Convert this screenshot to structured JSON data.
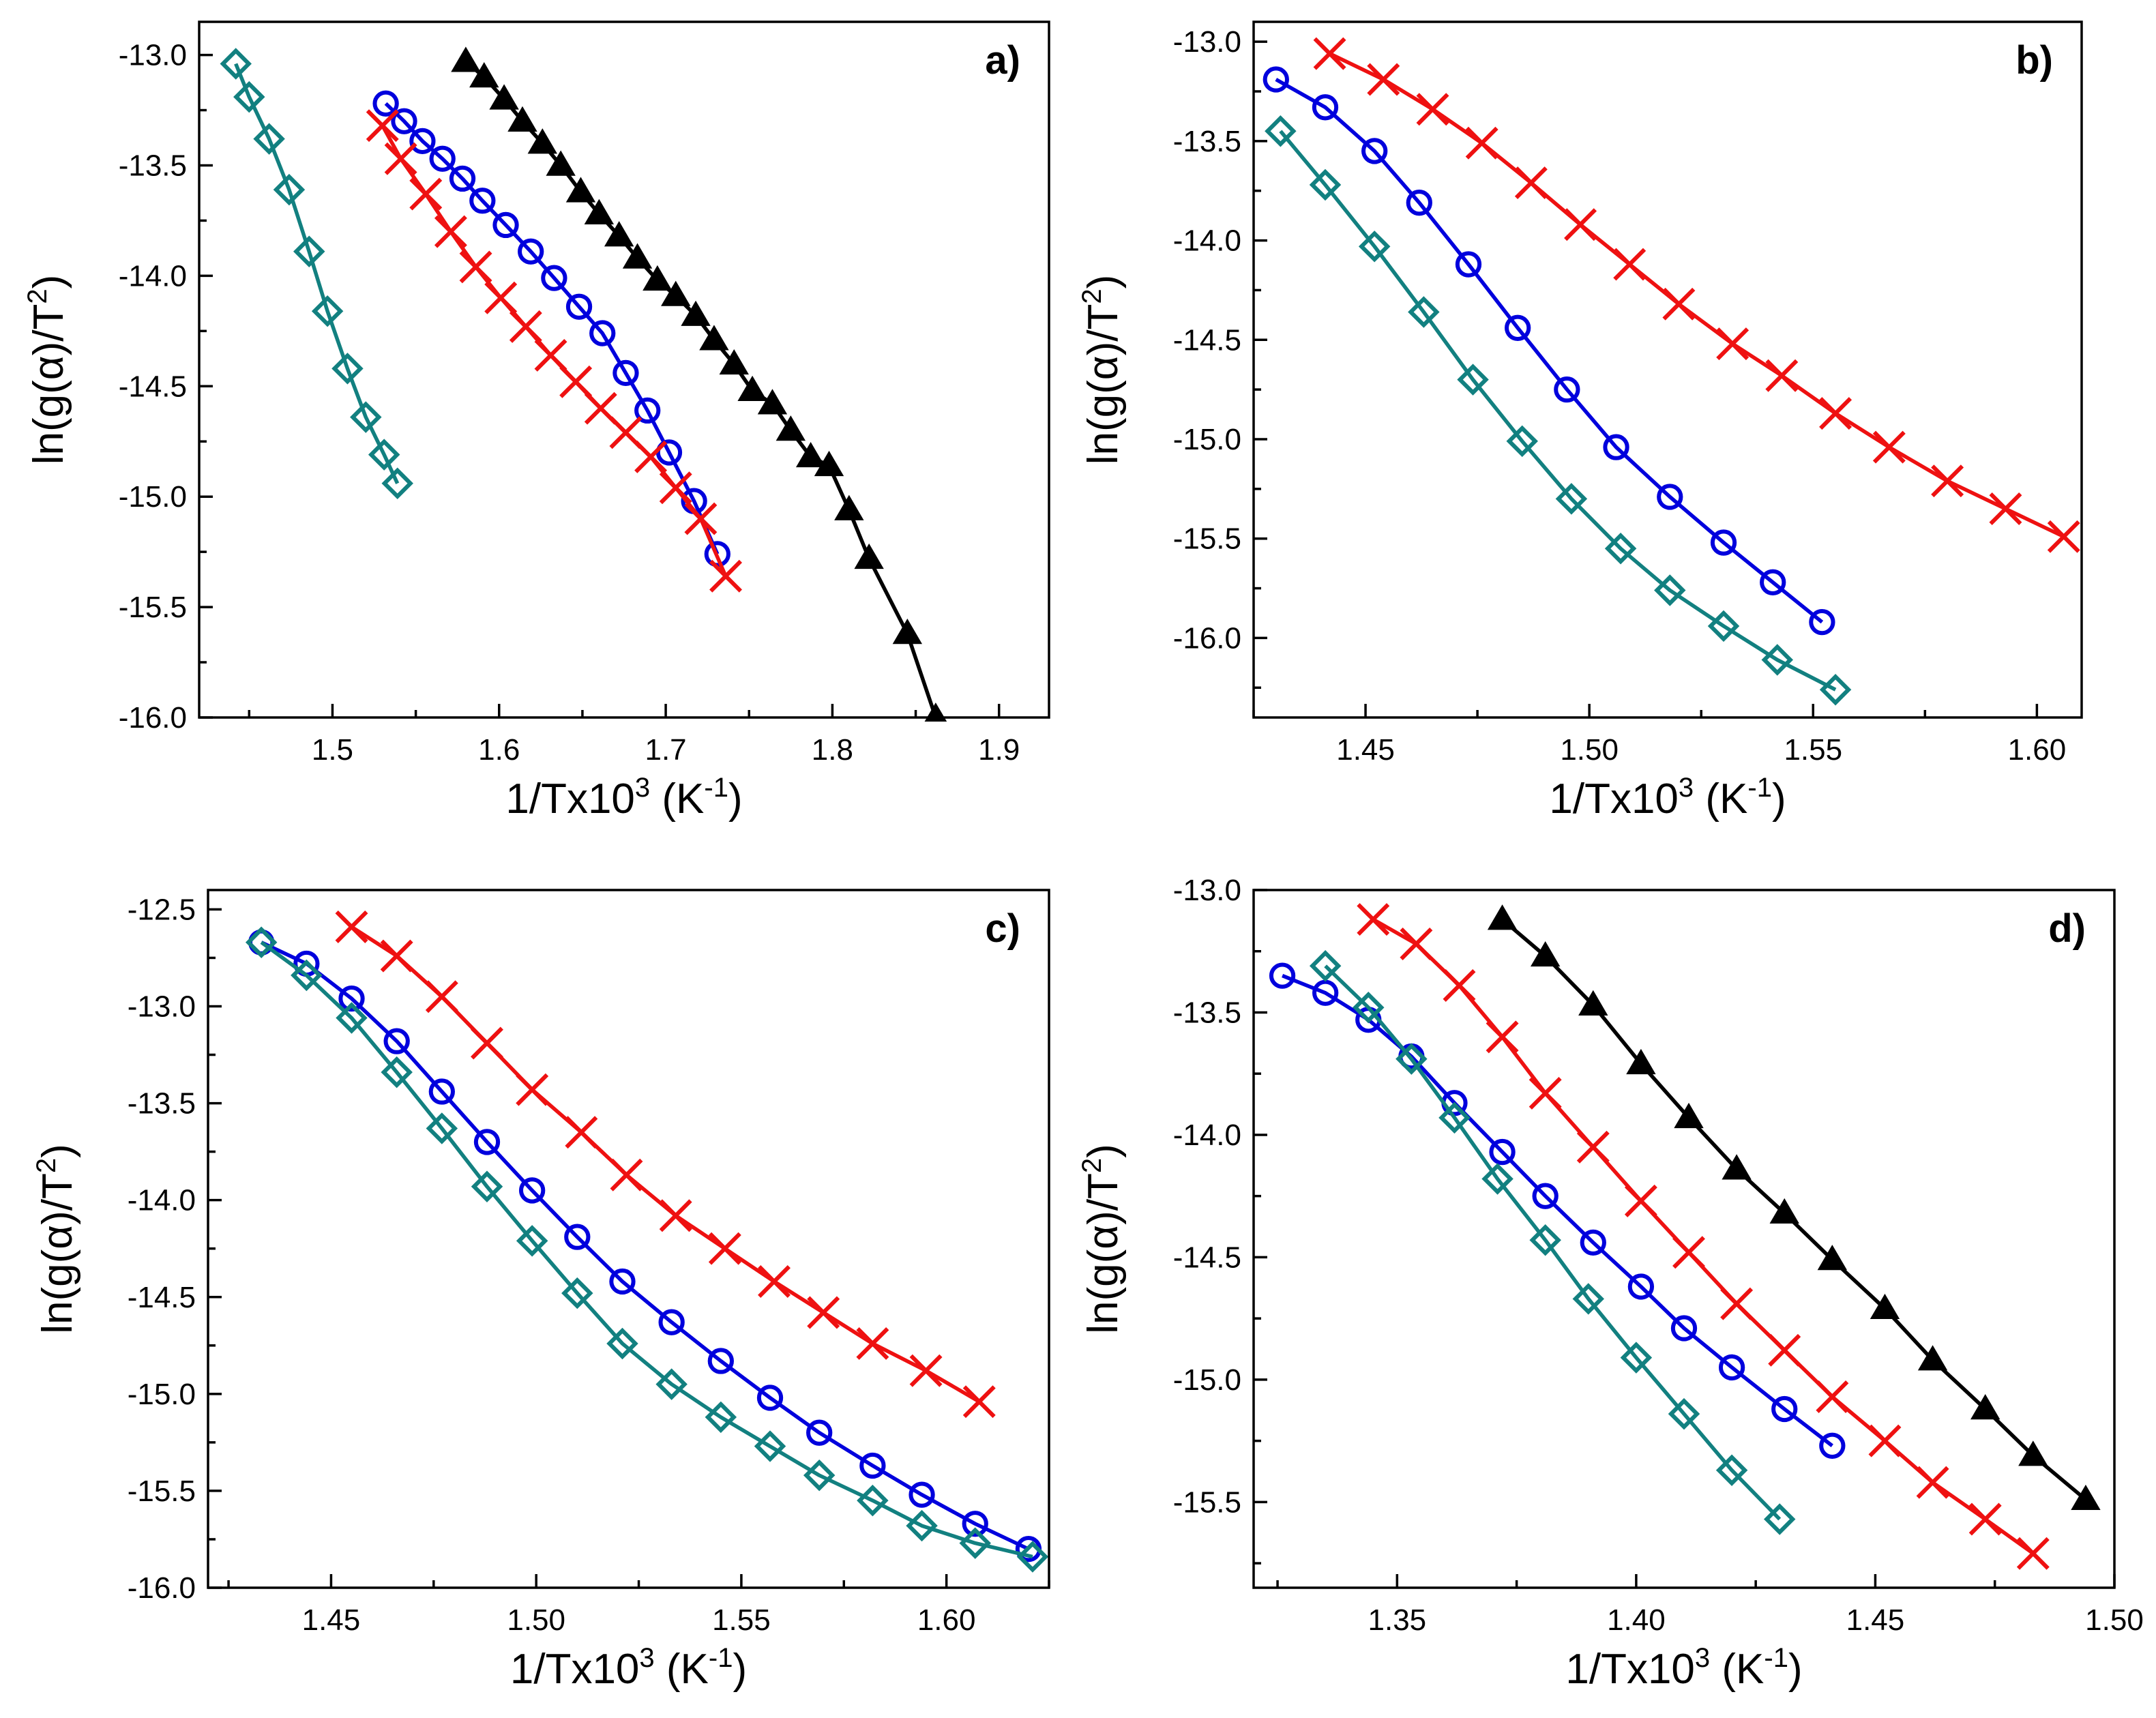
{
  "chart_data": [
    {
      "panel": "a)",
      "type": "line",
      "xlabel": "1/Tx10",
      "xlabel_sup": "3",
      "xlabel_unit": "(K",
      "xlabel_unit_sup": "-1",
      "xlabel_close": ")",
      "ylabel": "ln(g(α)/T",
      "ylabel_sup": "2",
      "ylabel_close": ")",
      "xlim": [
        1.42,
        1.93
      ],
      "ylim": [
        -16.0,
        -12.85
      ],
      "xticks": [
        1.5,
        1.6,
        1.7,
        1.8,
        1.9
      ],
      "xtick_labels": [
        "1.5",
        "1.6",
        "1.7",
        "1.8",
        "1.9"
      ],
      "yticks": [
        -16.0,
        -15.5,
        -15.0,
        -14.5,
        -14.0,
        -13.5,
        -13.0
      ],
      "ytick_labels": [
        "-16.0",
        "-15.5",
        "-15.0",
        "-14.5",
        "-14.0",
        "-13.5",
        "-13.0"
      ],
      "series": [
        {
          "name": "triangle",
          "color": "#000000",
          "marker": "triangle",
          "x": [
            1.58,
            1.591,
            1.603,
            1.614,
            1.626,
            1.637,
            1.649,
            1.66,
            1.672,
            1.683,
            1.695,
            1.706,
            1.718,
            1.729,
            1.741,
            1.752,
            1.764,
            1.775,
            1.787,
            1.798,
            1.81,
            1.822,
            1.845,
            1.862
          ],
          "y": [
            -13.03,
            -13.1,
            -13.2,
            -13.3,
            -13.4,
            -13.5,
            -13.62,
            -13.72,
            -13.82,
            -13.92,
            -14.02,
            -14.09,
            -14.18,
            -14.29,
            -14.4,
            -14.52,
            -14.58,
            -14.7,
            -14.82,
            -14.86,
            -15.06,
            -15.28,
            -15.62,
            -16.0
          ]
        },
        {
          "name": "circle",
          "color": "#0000dd",
          "marker": "circle",
          "x": [
            1.532,
            1.543,
            1.554,
            1.566,
            1.578,
            1.59,
            1.604,
            1.619,
            1.633,
            1.648,
            1.662,
            1.676,
            1.689,
            1.702,
            1.717,
            1.731
          ],
          "y": [
            -13.22,
            -13.3,
            -13.39,
            -13.47,
            -13.56,
            -13.66,
            -13.77,
            -13.89,
            -14.01,
            -14.14,
            -14.26,
            -14.44,
            -14.61,
            -14.8,
            -15.02,
            -15.26
          ]
        },
        {
          "name": "cross",
          "color": "#ee1111",
          "marker": "cross",
          "x": [
            1.53,
            1.541,
            1.556,
            1.571,
            1.586,
            1.601,
            1.616,
            1.631,
            1.646,
            1.661,
            1.676,
            1.691,
            1.706,
            1.721,
            1.736
          ],
          "y": [
            -13.32,
            -13.47,
            -13.63,
            -13.8,
            -13.96,
            -14.1,
            -14.23,
            -14.36,
            -14.48,
            -14.6,
            -14.71,
            -14.82,
            -14.96,
            -15.1,
            -15.36
          ]
        },
        {
          "name": "diamond",
          "color": "#128080",
          "marker": "diamond",
          "x": [
            1.442,
            1.45,
            1.462,
            1.474,
            1.486,
            1.497,
            1.509,
            1.52,
            1.531,
            1.539
          ],
          "y": [
            -13.04,
            -13.19,
            -13.38,
            -13.61,
            -13.89,
            -14.16,
            -14.42,
            -14.64,
            -14.81,
            -14.94
          ]
        }
      ]
    },
    {
      "panel": "b)",
      "type": "line",
      "xlabel": "1/Tx10",
      "xlabel_sup": "3",
      "xlabel_unit": "(K",
      "xlabel_unit_sup": "-1",
      "xlabel_close": ")",
      "ylabel": "ln(g(α)/T",
      "ylabel_sup": "2",
      "ylabel_close": ")",
      "xlim": [
        1.425,
        1.61
      ],
      "ylim": [
        -16.4,
        -12.9
      ],
      "xticks": [
        1.45,
        1.5,
        1.55,
        1.6
      ],
      "xtick_labels": [
        "1.45",
        "1.50",
        "1.55",
        "1.60"
      ],
      "yticks": [
        -16.0,
        -15.5,
        -15.0,
        -14.5,
        -14.0,
        -13.5,
        -13.0
      ],
      "ytick_labels": [
        "-16.0",
        "-15.5",
        "-15.0",
        "-14.5",
        "-14.0",
        "-13.5",
        "-13.0"
      ],
      "series": [
        {
          "name": "cross",
          "color": "#ee1111",
          "marker": "cross",
          "x": [
            1.442,
            1.454,
            1.465,
            1.476,
            1.487,
            1.498,
            1.509,
            1.52,
            1.532,
            1.543,
            1.555,
            1.567,
            1.58,
            1.593,
            1.606
          ],
          "y": [
            -13.06,
            -13.19,
            -13.34,
            -13.51,
            -13.71,
            -13.92,
            -14.12,
            -14.32,
            -14.52,
            -14.68,
            -14.87,
            -15.04,
            -15.21,
            -15.35,
            -15.49
          ]
        },
        {
          "name": "circle",
          "color": "#0000dd",
          "marker": "circle",
          "x": [
            1.43,
            1.441,
            1.452,
            1.462,
            1.473,
            1.484,
            1.495,
            1.506,
            1.518,
            1.53,
            1.541,
            1.552
          ],
          "y": [
            -13.19,
            -13.33,
            -13.55,
            -13.81,
            -14.12,
            -14.44,
            -14.75,
            -15.04,
            -15.29,
            -15.52,
            -15.72,
            -15.92
          ]
        },
        {
          "name": "diamond",
          "color": "#128080",
          "marker": "diamond",
          "x": [
            1.431,
            1.441,
            1.452,
            1.463,
            1.474,
            1.485,
            1.496,
            1.507,
            1.518,
            1.53,
            1.542,
            1.555
          ],
          "y": [
            -13.45,
            -13.72,
            -14.03,
            -14.36,
            -14.7,
            -15.01,
            -15.3,
            -15.55,
            -15.76,
            -15.94,
            -16.11,
            -16.26
          ]
        }
      ]
    },
    {
      "panel": "c)",
      "type": "line",
      "xlabel": "1/Tx10",
      "xlabel_sup": "3",
      "xlabel_unit": "(K",
      "xlabel_unit_sup": "-1",
      "xlabel_close": ")",
      "ylabel": "ln(g(α)/T",
      "ylabel_sup": "2",
      "ylabel_close": ")",
      "xlim": [
        1.42,
        1.625
      ],
      "ylim": [
        -16.0,
        -12.4
      ],
      "xticks": [
        1.45,
        1.5,
        1.55,
        1.6
      ],
      "xtick_labels": [
        "1.45",
        "1.50",
        "1.55",
        "1.60"
      ],
      "yticks": [
        -16.0,
        -15.5,
        -15.0,
        -14.5,
        -14.0,
        -13.5,
        -13.0,
        -12.5
      ],
      "ytick_labels": [
        "-16.0",
        "-15.5",
        "-15.0",
        "-14.5",
        "-14.0",
        "-13.5",
        "-13.0",
        "-12.5"
      ],
      "series": [
        {
          "name": "cross",
          "color": "#ee1111",
          "marker": "cross",
          "x": [
            1.455,
            1.466,
            1.477,
            1.488,
            1.499,
            1.511,
            1.522,
            1.534,
            1.546,
            1.558,
            1.57,
            1.582,
            1.595,
            1.608
          ],
          "y": [
            -12.59,
            -12.74,
            -12.95,
            -13.19,
            -13.43,
            -13.65,
            -13.87,
            -14.08,
            -14.25,
            -14.42,
            -14.58,
            -14.74,
            -14.88,
            -15.04
          ]
        },
        {
          "name": "circle",
          "color": "#0000dd",
          "marker": "circle",
          "x": [
            1.433,
            1.444,
            1.455,
            1.466,
            1.477,
            1.488,
            1.499,
            1.51,
            1.521,
            1.533,
            1.545,
            1.557,
            1.569,
            1.582,
            1.594,
            1.607,
            1.62
          ],
          "y": [
            -12.67,
            -12.78,
            -12.96,
            -13.18,
            -13.44,
            -13.7,
            -13.95,
            -14.19,
            -14.42,
            -14.63,
            -14.83,
            -15.02,
            -15.2,
            -15.37,
            -15.52,
            -15.67,
            -15.8
          ]
        },
        {
          "name": "diamond",
          "color": "#128080",
          "marker": "diamond",
          "x": [
            1.433,
            1.444,
            1.455,
            1.466,
            1.477,
            1.488,
            1.499,
            1.51,
            1.521,
            1.533,
            1.545,
            1.557,
            1.569,
            1.582,
            1.594,
            1.607,
            1.621
          ],
          "y": [
            -12.67,
            -12.84,
            -13.06,
            -13.34,
            -13.63,
            -13.93,
            -14.21,
            -14.48,
            -14.74,
            -14.95,
            -15.12,
            -15.27,
            -15.42,
            -15.55,
            -15.68,
            -15.77,
            -15.84
          ]
        }
      ]
    },
    {
      "panel": "d)",
      "type": "line",
      "xlabel": "1/Tx10",
      "xlabel_sup": "3",
      "xlabel_unit": "(K",
      "xlabel_unit_sup": "-1",
      "xlabel_close": ")",
      "ylabel": "ln(g(α)/T",
      "ylabel_sup": "2",
      "ylabel_close": ")",
      "xlim": [
        1.32,
        1.5
      ],
      "ylim": [
        -15.85,
        -13.0
      ],
      "xticks": [
        1.35,
        1.4,
        1.45,
        1.5
      ],
      "xtick_labels": [
        "1.35",
        "1.40",
        "1.45",
        "1.50"
      ],
      "yticks": [
        -15.5,
        -15.0,
        -14.5,
        -14.0,
        -13.5,
        -13.0
      ],
      "ytick_labels": [
        "-15.5",
        "-15.0",
        "-14.5",
        "-14.0",
        "-13.5",
        "-13.0"
      ],
      "series": [
        {
          "name": "triangle",
          "color": "#000000",
          "marker": "triangle",
          "x": [
            1.372,
            1.381,
            1.391,
            1.401,
            1.411,
            1.421,
            1.431,
            1.441,
            1.452,
            1.462,
            1.473,
            1.483,
            1.494
          ],
          "y": [
            -13.12,
            -13.27,
            -13.47,
            -13.71,
            -13.93,
            -14.14,
            -14.32,
            -14.51,
            -14.71,
            -14.92,
            -15.12,
            -15.31,
            -15.49
          ]
        },
        {
          "name": "cross",
          "color": "#ee1111",
          "marker": "cross",
          "x": [
            1.345,
            1.354,
            1.363,
            1.372,
            1.381,
            1.391,
            1.401,
            1.411,
            1.421,
            1.431,
            1.441,
            1.452,
            1.462,
            1.473,
            1.483
          ],
          "y": [
            -13.12,
            -13.22,
            -13.39,
            -13.6,
            -13.83,
            -14.05,
            -14.27,
            -14.48,
            -14.69,
            -14.88,
            -15.07,
            -15.25,
            -15.42,
            -15.57,
            -15.71
          ]
        },
        {
          "name": "circle",
          "color": "#0000dd",
          "marker": "circle",
          "x": [
            1.326,
            1.335,
            1.344,
            1.353,
            1.362,
            1.372,
            1.381,
            1.391,
            1.401,
            1.41,
            1.42,
            1.431,
            1.441
          ],
          "y": [
            -13.35,
            -13.42,
            -13.53,
            -13.68,
            -13.87,
            -14.07,
            -14.25,
            -14.44,
            -14.62,
            -14.79,
            -14.95,
            -15.12,
            -15.27
          ]
        },
        {
          "name": "diamond",
          "color": "#128080",
          "marker": "diamond",
          "x": [
            1.335,
            1.344,
            1.353,
            1.362,
            1.371,
            1.381,
            1.39,
            1.4,
            1.41,
            1.42,
            1.43
          ],
          "y": [
            -13.31,
            -13.48,
            -13.69,
            -13.93,
            -14.18,
            -14.43,
            -14.67,
            -14.91,
            -15.14,
            -15.37,
            -15.57
          ]
        }
      ]
    }
  ]
}
